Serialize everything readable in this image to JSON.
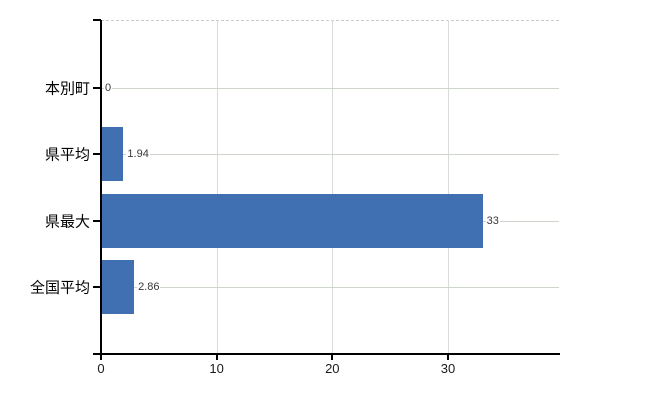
{
  "chart_data": {
    "type": "bar",
    "orientation": "horizontal",
    "title": "",
    "xlabel": "",
    "ylabel": "",
    "categories": [
      "本別町",
      "県平均",
      "県最大",
      "全国平均"
    ],
    "values": [
      0,
      1.94,
      33,
      2.86
    ],
    "data_labels": [
      "0",
      "1.94",
      "33",
      "2.86"
    ],
    "x_ticks": [
      0,
      10,
      20,
      30
    ],
    "x_tick_labels": [
      "0",
      "10",
      "20",
      "30"
    ],
    "xlim": [
      0,
      39.6
    ],
    "grid": true,
    "legend": false,
    "bar_color": "#4070b2"
  },
  "colors": {
    "background": "#ffffff",
    "axis": "#000000",
    "horizontal_gridline": "#ced5cb",
    "vertical_gridline": "#d8dbd6",
    "top_border_dashed": "#c6ccc6",
    "category_label": "#000000",
    "data_label": "#383838",
    "tick_label": "#1a1a1a"
  }
}
